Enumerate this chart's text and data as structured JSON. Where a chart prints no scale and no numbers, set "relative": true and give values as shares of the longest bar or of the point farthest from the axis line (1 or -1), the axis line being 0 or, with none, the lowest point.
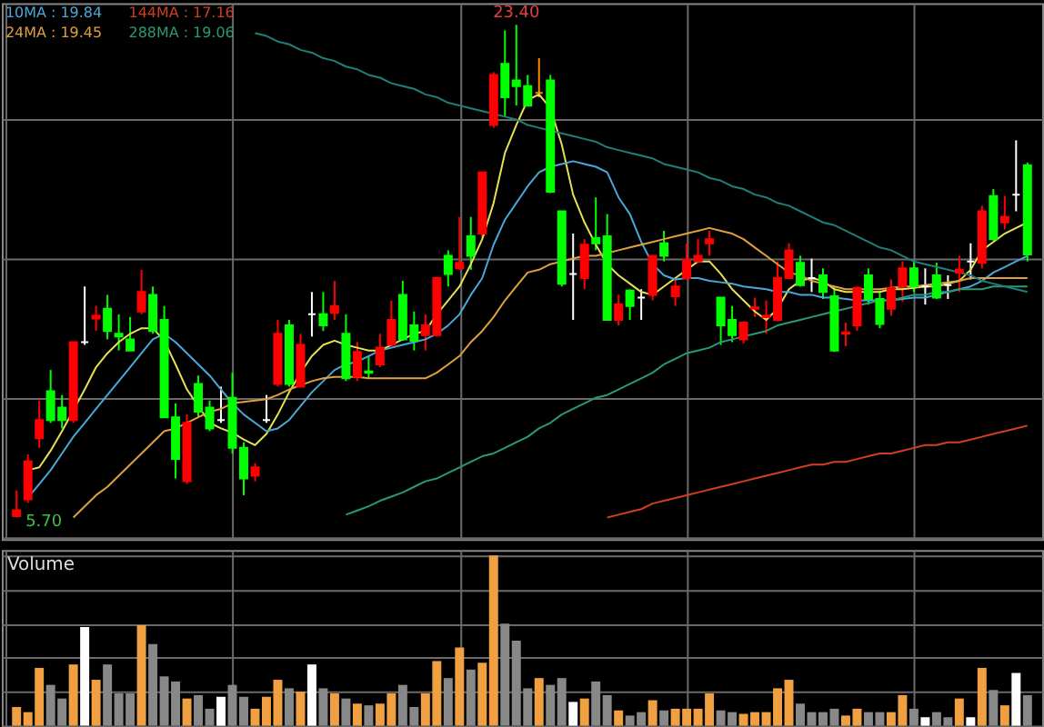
{
  "chart_data": [
    {
      "type": "candlestick",
      "legend": "top left",
      "grid": true,
      "tick_labels": false,
      "categories": [
        null,
        null,
        null,
        null,
        null,
        null,
        null,
        null,
        null,
        null,
        null,
        null,
        null,
        null,
        null,
        null,
        null,
        null,
        null,
        null,
        null,
        null,
        null,
        null,
        null,
        null,
        null,
        null,
        null,
        null,
        null,
        null,
        null,
        null,
        null,
        null,
        null,
        null,
        null,
        null,
        null,
        null,
        null,
        null,
        null,
        null,
        null,
        null,
        null,
        null,
        null,
        null,
        null,
        null,
        null,
        null,
        null,
        null,
        null,
        null,
        null,
        null,
        null,
        null,
        null,
        null,
        null,
        null,
        null,
        null,
        null,
        null,
        null,
        null,
        null,
        null,
        null,
        null,
        null,
        null,
        null,
        null,
        null,
        null,
        null,
        null,
        null,
        null,
        null,
        null
      ],
      "ohlc": [
        [
          5.75,
          6.67,
          5.7,
          5.96
        ],
        [
          6.35,
          7.97,
          6.22,
          7.71
        ],
        [
          8.55,
          9.9,
          8.2,
          9.2
        ],
        [
          10.24,
          11.0,
          9.1,
          9.2
        ],
        [
          9.65,
          10.1,
          8.9,
          9.2
        ],
        [
          9.2,
          12.0,
          9.1,
          12.0
        ],
        [
          12.0,
          14.0,
          11.9,
          12.0
        ],
        [
          12.85,
          13.3,
          12.4,
          12.95
        ],
        [
          13.2,
          13.7,
          12.1,
          12.4
        ],
        [
          12.3,
          13.0,
          11.7,
          12.2
        ],
        [
          12.1,
          12.9,
          11.7,
          11.7
        ],
        [
          13.1,
          14.6,
          13.0,
          13.8
        ],
        [
          13.7,
          14.0,
          12.3,
          12.4
        ],
        [
          12.8,
          13.3,
          9.3,
          9.3
        ],
        [
          9.3,
          9.8,
          7.1,
          7.8
        ],
        [
          7.0,
          9.4,
          6.9,
          9.1
        ],
        [
          10.5,
          10.8,
          9.3,
          9.5
        ],
        [
          9.65,
          9.9,
          8.8,
          8.9
        ],
        [
          9.2,
          10.4,
          9.1,
          9.2
        ],
        [
          10.0,
          10.9,
          8.0,
          8.2
        ],
        [
          8.2,
          8.4,
          6.5,
          7.1
        ],
        [
          7.2,
          7.65,
          7.0,
          7.5
        ],
        [
          9.2,
          10.1,
          9.1,
          9.2
        ],
        [
          10.5,
          12.8,
          10.4,
          12.3
        ],
        [
          12.6,
          12.8,
          10.4,
          10.5
        ],
        [
          10.4,
          12.3,
          10.4,
          11.9
        ],
        [
          13.0,
          13.8,
          12.2,
          13.0
        ],
        [
          13.0,
          13.8,
          12.4,
          12.6
        ],
        [
          13.05,
          14.2,
          12.8,
          13.3
        ],
        [
          12.3,
          13.0,
          10.6,
          10.7
        ],
        [
          10.75,
          12.0,
          10.6,
          11.65
        ],
        [
          10.95,
          11.5,
          10.7,
          10.9
        ],
        [
          11.2,
          12.3,
          11.1,
          11.8
        ],
        [
          11.9,
          13.5,
          11.85,
          12.8
        ],
        [
          13.7,
          14.2,
          12.05,
          12.1
        ],
        [
          12.6,
          13.1,
          11.7,
          12.05
        ],
        [
          12.25,
          13.0,
          11.7,
          12.6
        ],
        [
          12.25,
          14.3,
          12.2,
          14.3
        ],
        [
          15.1,
          15.3,
          14.0,
          14.45
        ],
        [
          14.65,
          16.5,
          14.6,
          14.85
        ],
        [
          15.8,
          16.5,
          14.6,
          15.1
        ],
        [
          15.9,
          18.1,
          15.75,
          18.1
        ],
        [
          19.8,
          21.7,
          19.7,
          21.6
        ],
        [
          22.0,
          23.2,
          20.1,
          20.8
        ],
        [
          21.4,
          23.4,
          20.5,
          21.2
        ],
        [
          21.2,
          21.6,
          20.5,
          20.5
        ],
        [
          20.95,
          22.2,
          20.8,
          20.95
        ],
        [
          21.4,
          21.6,
          17.35,
          17.4
        ],
        [
          16.7,
          16.7,
          14.0,
          14.1
        ],
        [
          14.45,
          15.9,
          12.8,
          14.45
        ],
        [
          14.3,
          15.7,
          13.9,
          15.5
        ],
        [
          15.74,
          17.2,
          15.3,
          15.55
        ],
        [
          15.8,
          16.6,
          12.8,
          12.8
        ],
        [
          12.8,
          13.7,
          12.6,
          13.35
        ],
        [
          13.85,
          13.9,
          12.8,
          13.3
        ],
        [
          13.6,
          13.9,
          12.8,
          13.6
        ],
        [
          13.7,
          15.1,
          13.5,
          15.1
        ],
        [
          15.55,
          16.0,
          14.9,
          15.1
        ],
        [
          13.65,
          14.3,
          13.3,
          14.0
        ],
        [
          14.3,
          15.55,
          14.25,
          14.95
        ],
        [
          14.9,
          15.7,
          14.85,
          15.1
        ],
        [
          15.55,
          16.0,
          15.1,
          15.7
        ],
        [
          13.6,
          13.6,
          11.9,
          12.6
        ],
        [
          12.8,
          13.3,
          12.0,
          12.25
        ],
        [
          12.1,
          12.75,
          11.95,
          12.7
        ],
        [
          13.2,
          13.6,
          12.9,
          13.25
        ],
        [
          12.9,
          13.5,
          12.3,
          12.95
        ],
        [
          12.8,
          14.9,
          12.75,
          14.3
        ],
        [
          14.3,
          15.55,
          14.25,
          15.3
        ],
        [
          14.85,
          15.1,
          14.0,
          14.05
        ],
        [
          14.3,
          15.0,
          13.8,
          14.3
        ],
        [
          14.4,
          14.65,
          13.55,
          13.8
        ],
        [
          13.65,
          14.0,
          11.65,
          11.7
        ],
        [
          12.3,
          12.7,
          11.85,
          12.35
        ],
        [
          12.6,
          14.0,
          12.4,
          13.95
        ],
        [
          14.4,
          14.65,
          13.35,
          13.55
        ],
        [
          13.55,
          13.85,
          12.5,
          12.65
        ],
        [
          13.2,
          14.25,
          12.95,
          13.95
        ],
        [
          14.0,
          14.9,
          13.45,
          14.65
        ],
        [
          14.65,
          14.9,
          13.8,
          14.0
        ],
        [
          14.0,
          14.65,
          13.35,
          14.0
        ],
        [
          14.4,
          14.85,
          13.55,
          13.6
        ],
        [
          14.05,
          14.4,
          13.55,
          14.05
        ],
        [
          14.5,
          15.1,
          13.8,
          14.6
        ],
        [
          14.9,
          15.55,
          14.25,
          14.9
        ],
        [
          14.85,
          16.9,
          14.65,
          16.7
        ],
        [
          17.25,
          17.5,
          15.65,
          15.7
        ],
        [
          16.3,
          17.25,
          16.05,
          16.5
        ],
        [
          17.3,
          19.25,
          16.7,
          17.3
        ],
        [
          18.35,
          18.45,
          14.9,
          15.15
        ]
      ],
      "colors": [
        "#ff0000",
        "#ff0000",
        "#ff0000",
        "#00ff00",
        "#00ff00",
        "#ff0000",
        "#ffffff",
        "#ff0000",
        "#00ff00",
        "#00ff00",
        "#00ff00",
        "#ff0000",
        "#00ff00",
        "#00ff00",
        "#00ff00",
        "#ff0000",
        "#00ff00",
        "#00ff00",
        "#ffffff",
        "#00ff00",
        "#00ff00",
        "#ff0000",
        "#ffffff",
        "#ff0000",
        "#00ff00",
        "#ff0000",
        "#ffffff",
        "#00ff00",
        "#ff0000",
        "#00ff00",
        "#ff0000",
        "#00ff00",
        "#ff0000",
        "#ff0000",
        "#00ff00",
        "#00ff00",
        "#ff0000",
        "#ff0000",
        "#00ff00",
        "#ff0000",
        "#00ff00",
        "#ff0000",
        "#ff0000",
        "#00ff00",
        "#00ff00",
        "#00ff00",
        "#ff8c00",
        "#00ff00",
        "#00ff00",
        "#ffffff",
        "#ff0000",
        "#00ff00",
        "#00ff00",
        "#ff0000",
        "#00ff00",
        "#ffffff",
        "#ff0000",
        "#00ff00",
        "#ff0000",
        "#ff0000",
        "#ff0000",
        "#ff0000",
        "#00ff00",
        "#00ff00",
        "#ff0000",
        "#ff0000",
        "#ff0000",
        "#ff0000",
        "#ff0000",
        "#00ff00",
        "#ffffff",
        "#00ff00",
        "#00ff00",
        "#ff0000",
        "#ff0000",
        "#00ff00",
        "#00ff00",
        "#ff0000",
        "#ff0000",
        "#00ff00",
        "#ffffff",
        "#00ff00",
        "#ffffff",
        "#ff0000",
        "#ffffff",
        "#ff0000",
        "#00ff00",
        "#ff0000",
        "#ffffff",
        "#00ff00"
      ],
      "series": [
        {
          "type": "line",
          "color": "#e8e050",
          "values": [
            null,
            7.4,
            7.5,
            8.1,
            8.8,
            null,
            10.3,
            11.1,
            11.6,
            12.0,
            12.3,
            12.5,
            12.5,
            12.05,
            11.2,
            10.3,
            9.7,
            9.1,
            8.9,
            8.75,
            8.5,
            8.3,
            8.7,
            9.4,
            10.2,
            10.9,
            11.5,
            11.9,
            12.05,
            11.9,
            11.8,
            11.7,
            11.7,
            11.9,
            12.1,
            12.3,
            12.4,
            13.0,
            13.5,
            14.0,
            14.8,
            15.7,
            17.0,
            18.8,
            19.8,
            20.7,
            20.9,
            20.4,
            19.1,
            17.3,
            16.3,
            15.5,
            14.8,
            14.4,
            14.1,
            13.8,
            13.7,
            14.0,
            14.3,
            14.6,
            14.9,
            14.9,
            14.45,
            13.9,
            13.5,
            13.1,
            12.8,
            13.2,
            13.9,
            14.2,
            14.3,
            14.2,
            13.9,
            13.8,
            13.8,
            13.8,
            13.8,
            13.9,
            13.9,
            13.95,
            14.0,
            14.0,
            14.1,
            14.2,
            14.6,
            15.3,
            15.6,
            15.9,
            16.1,
            16.3
          ]
        },
        {
          "type": "line",
          "name": "10MA : 19.84",
          "color": "#4aa8d8",
          "values": [
            null,
            6.4,
            6.9,
            7.4,
            8.0,
            8.6,
            9.1,
            9.6,
            10.1,
            10.6,
            11.1,
            11.6,
            12.1,
            12.3,
            12.0,
            11.6,
            11.2,
            10.8,
            10.3,
            9.8,
            9.4,
            9.1,
            8.8,
            8.9,
            9.2,
            9.7,
            10.2,
            10.6,
            11.0,
            11.2,
            11.3,
            11.5,
            11.7,
            11.8,
            11.9,
            12.0,
            12.1,
            12.3,
            12.6,
            13.0,
            13.7,
            14.3,
            15.5,
            16.4,
            17.0,
            17.6,
            18.1,
            18.3,
            18.4,
            18.5,
            18.4,
            18.3,
            18.1,
            17.2,
            16.6,
            15.6,
            14.8,
            14.4,
            14.25,
            14.3,
            14.3,
            14.2,
            14.15,
            14.1,
            14.0,
            13.95,
            13.9,
            13.8,
            13.8,
            13.7,
            13.7,
            13.6,
            13.6,
            13.55,
            13.5,
            13.5,
            13.5,
            13.5,
            13.55,
            13.6,
            13.6,
            13.7,
            13.8,
            13.9,
            14.0,
            14.2,
            14.5,
            14.7,
            14.9,
            15.1
          ]
        },
        {
          "type": "line",
          "name": "24MA : 19.45",
          "color": "#e0a040",
          "values": [
            null,
            null,
            null,
            null,
            null,
            5.7,
            6.1,
            6.5,
            6.8,
            7.2,
            7.6,
            8.0,
            8.4,
            8.8,
            8.9,
            9.1,
            9.3,
            9.5,
            9.6,
            9.8,
            9.85,
            9.9,
            9.95,
            10.1,
            10.3,
            10.45,
            10.6,
            10.7,
            10.75,
            10.75,
            10.75,
            10.7,
            10.7,
            10.7,
            10.7,
            10.7,
            10.7,
            10.9,
            11.2,
            11.5,
            12.0,
            12.4,
            12.9,
            13.5,
            14.0,
            14.5,
            14.6,
            14.8,
            14.9,
            15.0,
            15.1,
            15.1,
            15.2,
            15.3,
            15.4,
            15.5,
            15.6,
            15.7,
            15.8,
            15.9,
            16.0,
            16.1,
            16.0,
            15.9,
            15.7,
            15.4,
            15.1,
            14.8,
            14.5,
            14.4,
            14.2,
            14.1,
            14.0,
            13.9,
            13.9,
            13.9,
            13.9,
            13.95,
            14.0,
            14.0,
            14.05,
            14.1,
            14.15,
            14.2,
            14.3,
            14.3,
            14.3,
            14.3,
            14.3,
            14.3
          ]
        },
        {
          "type": "line",
          "name": "144MA : 17.16",
          "color": "#d04020",
          "values": [
            null,
            null,
            null,
            null,
            null,
            null,
            null,
            null,
            null,
            null,
            null,
            null,
            null,
            null,
            null,
            null,
            null,
            null,
            null,
            null,
            null,
            null,
            null,
            null,
            null,
            null,
            null,
            null,
            null,
            null,
            null,
            null,
            null,
            null,
            null,
            null,
            null,
            null,
            null,
            null,
            null,
            null,
            null,
            null,
            null,
            null,
            null,
            null,
            null,
            null,
            null,
            null,
            5.7,
            5.8,
            5.9,
            6.0,
            6.2,
            6.3,
            6.4,
            6.5,
            6.6,
            6.7,
            6.8,
            6.9,
            7.0,
            7.1,
            7.2,
            7.3,
            7.4,
            7.5,
            7.6,
            7.6,
            7.7,
            7.7,
            7.8,
            7.9,
            8.0,
            8.0,
            8.1,
            8.2,
            8.3,
            8.3,
            8.4,
            8.4,
            8.5,
            8.6,
            8.7,
            8.8,
            8.9,
            9.0
          ]
        },
        {
          "type": "line",
          "name": "288MA : 19.06",
          "color": "#2a9a70",
          "values": [
            null,
            null,
            null,
            null,
            null,
            null,
            null,
            null,
            null,
            null,
            null,
            null,
            null,
            null,
            null,
            null,
            null,
            null,
            null,
            null,
            null,
            null,
            null,
            null,
            null,
            null,
            null,
            null,
            null,
            5.8,
            5.95,
            6.1,
            6.3,
            6.45,
            6.6,
            6.8,
            7.0,
            7.1,
            7.3,
            7.5,
            7.7,
            7.9,
            8.0,
            8.2,
            8.4,
            8.6,
            8.9,
            9.1,
            9.4,
            9.6,
            9.8,
            10.0,
            10.1,
            10.3,
            10.5,
            10.7,
            10.9,
            11.2,
            11.4,
            11.6,
            11.7,
            11.8,
            12.0,
            12.1,
            12.2,
            12.3,
            12.4,
            12.6,
            12.7,
            12.8,
            12.9,
            13.0,
            13.1,
            13.2,
            13.3,
            13.4,
            13.5,
            13.5,
            13.6,
            13.7,
            13.7,
            13.8,
            13.8,
            13.9,
            13.9,
            13.9,
            14.0,
            14.0,
            14.0,
            14.0
          ]
        },
        {
          "type": "line",
          "color": "#1f7f7a",
          "values": [
            null,
            null,
            null,
            null,
            null,
            null,
            null,
            null,
            null,
            null,
            null,
            null,
            null,
            null,
            null,
            null,
            null,
            null,
            null,
            null,
            null,
            23.1,
            23.0,
            22.8,
            22.7,
            22.5,
            22.4,
            22.2,
            22.1,
            21.9,
            21.8,
            21.6,
            21.5,
            21.3,
            21.2,
            21.1,
            20.9,
            20.8,
            20.6,
            20.5,
            20.4,
            20.3,
            20.2,
            20.1,
            20.0,
            19.8,
            19.7,
            19.6,
            19.5,
            19.4,
            19.3,
            19.2,
            19.0,
            18.9,
            18.8,
            18.7,
            18.6,
            18.4,
            18.3,
            18.2,
            18.1,
            17.9,
            17.8,
            17.6,
            17.5,
            17.3,
            17.2,
            17.0,
            16.9,
            16.7,
            16.5,
            16.3,
            16.2,
            16.0,
            15.8,
            15.6,
            15.4,
            15.3,
            15.1,
            14.9,
            14.8,
            14.7,
            14.6,
            14.5,
            14.4,
            14.2,
            14.1,
            14.0,
            13.9,
            13.8
          ]
        }
      ],
      "annotations": [
        "23.40",
        "5.70"
      ]
    },
    {
      "type": "bar",
      "relative": true,
      "grid": true,
      "tick_labels": false,
      "title": "Volume",
      "categories": [
        null,
        null,
        null,
        null,
        null,
        null,
        null,
        null,
        null,
        null,
        null,
        null,
        null,
        null,
        null,
        null,
        null,
        null,
        null,
        null,
        null,
        null,
        null,
        null,
        null,
        null,
        null,
        null,
        null,
        null,
        null,
        null,
        null,
        null,
        null,
        null,
        null,
        null,
        null,
        null,
        null,
        null,
        null,
        null,
        null,
        null,
        null,
        null,
        null,
        null,
        null,
        null,
        null,
        null,
        null,
        null,
        null,
        null,
        null,
        null,
        null,
        null,
        null,
        null,
        null,
        null,
        null,
        null,
        null,
        null,
        null,
        null,
        null,
        null,
        null,
        null,
        null,
        null,
        null,
        null,
        null,
        null,
        null,
        null,
        null,
        null,
        null,
        null,
        null,
        null
      ],
      "values": [
        0.11,
        0.08,
        0.34,
        0.24,
        0.16,
        0.36,
        0.58,
        0.27,
        0.36,
        0.19,
        0.19,
        0.59,
        0.48,
        0.29,
        0.26,
        0.16,
        0.18,
        0.1,
        0.17,
        0.24,
        0.17,
        0.1,
        0.17,
        0.27,
        0.22,
        0.2,
        0.36,
        0.22,
        0.19,
        0.16,
        0.13,
        0.12,
        0.13,
        0.19,
        0.24,
        0.11,
        0.19,
        0.38,
        0.28,
        0.46,
        0.33,
        0.37,
        1.0,
        0.6,
        0.5,
        0.22,
        0.28,
        0.24,
        0.28,
        0.14,
        0.16,
        0.26,
        0.18,
        0.09,
        0.06,
        0.08,
        0.15,
        0.09,
        0.1,
        0.1,
        0.1,
        0.19,
        0.09,
        0.08,
        0.07,
        0.08,
        0.08,
        0.22,
        0.27,
        0.13,
        0.08,
        0.08,
        0.1,
        0.06,
        0.1,
        0.08,
        0.08,
        0.08,
        0.18,
        0.1,
        0.05,
        0.08,
        0.05,
        0.16,
        0.05,
        0.34,
        0.21,
        0.12,
        0.31,
        0.18
      ],
      "colors": [
        "#f0a040",
        "#f0a040",
        "#f0a040",
        "#888888",
        "#888888",
        "#f0a040",
        "#ffffff",
        "#f0a040",
        "#888888",
        "#888888",
        "#888888",
        "#f0a040",
        "#888888",
        "#888888",
        "#888888",
        "#f0a040",
        "#888888",
        "#888888",
        "#ffffff",
        "#888888",
        "#888888",
        "#f0a040",
        "#f0a040",
        "#f0a040",
        "#888888",
        "#f0a040",
        "#ffffff",
        "#888888",
        "#f0a040",
        "#888888",
        "#f0a040",
        "#888888",
        "#f0a040",
        "#f0a040",
        "#888888",
        "#888888",
        "#f0a040",
        "#f0a040",
        "#888888",
        "#f0a040",
        "#888888",
        "#f0a040",
        "#f0a040",
        "#888888",
        "#888888",
        "#888888",
        "#f0a040",
        "#888888",
        "#888888",
        "#ffffff",
        "#f0a040",
        "#888888",
        "#888888",
        "#f0a040",
        "#888888",
        "#888888",
        "#f0a040",
        "#888888",
        "#f0a040",
        "#f0a040",
        "#f0a040",
        "#f0a040",
        "#888888",
        "#888888",
        "#f0a040",
        "#f0a040",
        "#f0a040",
        "#f0a040",
        "#f0a040",
        "#888888",
        "#888888",
        "#888888",
        "#888888",
        "#f0a040",
        "#f0a040",
        "#888888",
        "#888888",
        "#f0a040",
        "#f0a040",
        "#888888",
        "#ffffff",
        "#888888",
        "#888888",
        "#f0a040",
        "#ffffff",
        "#f0a040",
        "#888888",
        "#f0a040",
        "#ffffff",
        "#888888"
      ]
    }
  ]
}
